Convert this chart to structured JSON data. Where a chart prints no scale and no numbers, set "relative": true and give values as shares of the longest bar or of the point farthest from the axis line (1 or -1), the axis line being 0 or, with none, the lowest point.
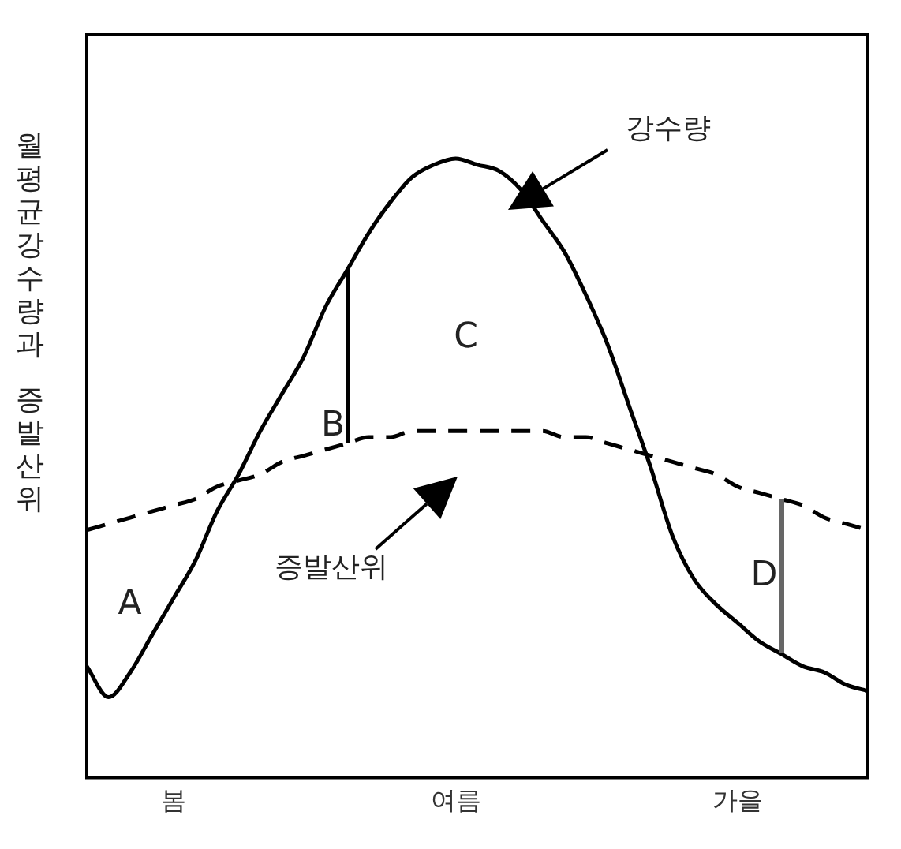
{
  "chart_data": {
    "type": "line",
    "relative": true,
    "ylabel": "월평균강수량과 증발산위",
    "categories": [
      null,
      null,
      null,
      null,
      "봄",
      null,
      null,
      null,
      null,
      null,
      null,
      null,
      null,
      null,
      null,
      null,
      null,
      "여름",
      null,
      null,
      null,
      null,
      null,
      null,
      null,
      null,
      null,
      null,
      null,
      null,
      "가을",
      null,
      null,
      null,
      null,
      null,
      null
    ],
    "series": [
      {
        "color": "#000000",
        "line_style": "solid",
        "values": [
          0.18,
          0.13,
          0.17,
          0.23,
          0.29,
          0.35,
          0.43,
          0.49,
          0.56,
          0.62,
          0.68,
          0.76,
          0.82,
          0.88,
          0.93,
          0.97,
          0.99,
          1.0,
          0.99,
          0.98,
          0.95,
          0.9,
          0.85,
          0.78,
          0.7,
          0.6,
          0.5,
          0.39,
          0.32,
          0.28,
          0.25,
          0.22,
          0.2,
          0.18,
          0.17,
          0.15,
          0.14
        ]
      },
      {
        "color": "#000000",
        "line_style": "dashed",
        "values": [
          0.4,
          0.41,
          0.42,
          0.43,
          0.44,
          0.45,
          0.47,
          0.48,
          0.49,
          0.51,
          0.52,
          0.53,
          0.54,
          0.55,
          0.55,
          0.56,
          0.56,
          0.56,
          0.56,
          0.56,
          0.56,
          0.56,
          0.55,
          0.55,
          0.54,
          0.53,
          0.52,
          0.51,
          0.5,
          0.49,
          0.47,
          0.46,
          0.45,
          0.44,
          0.42,
          0.41,
          0.4
        ]
      }
    ],
    "annotations": [
      "강수량",
      "증발산위",
      "A",
      "B",
      "C",
      "D"
    ],
    "marker": "none",
    "grid": false,
    "legend": false
  }
}
